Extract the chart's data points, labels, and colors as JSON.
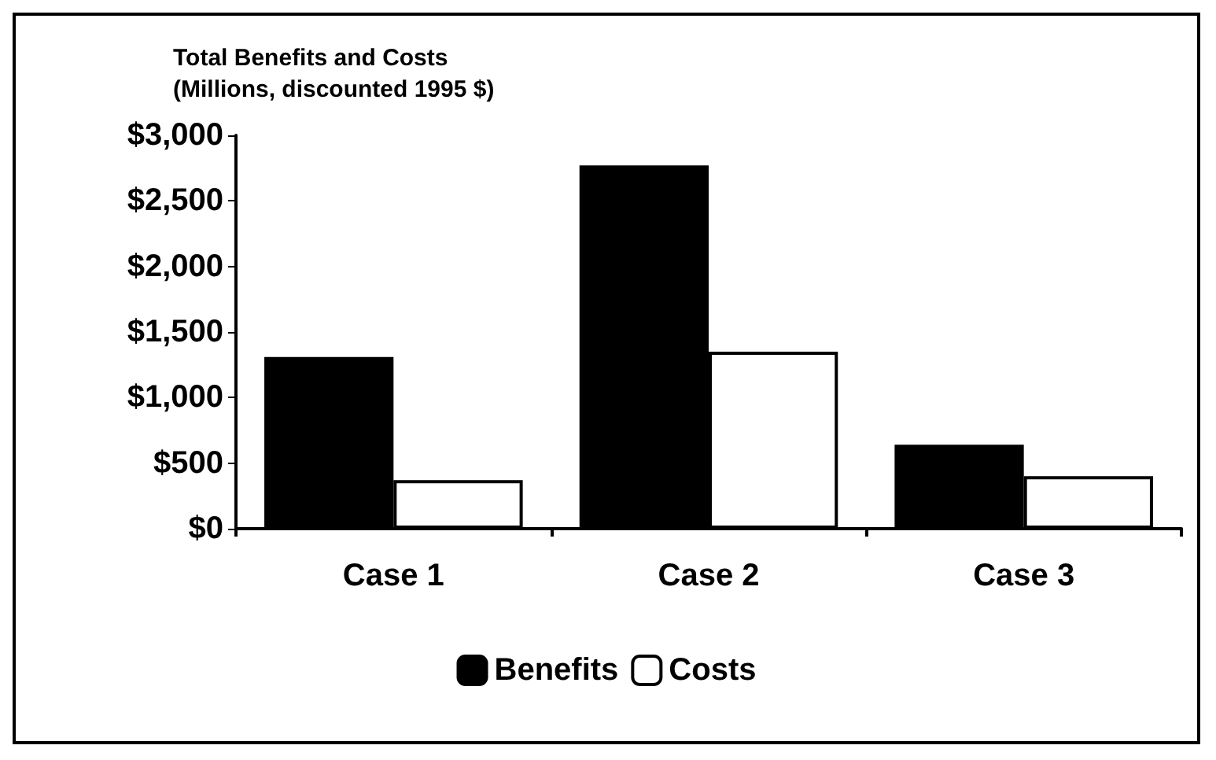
{
  "chart_data": {
    "type": "bar",
    "title": "Total Benefits and Costs\n(Millions, discounted 1995 $)",
    "categories": [
      "Case 1",
      "Case 2",
      "Case 3"
    ],
    "series": [
      {
        "name": "Benefits",
        "color": "#000000",
        "values": [
          1310,
          2770,
          640
        ]
      },
      {
        "name": "Costs",
        "color": "#ffffff",
        "values": [
          370,
          1350,
          400
        ]
      }
    ],
    "ylim": [
      0,
      3000
    ],
    "yticks": [
      {
        "value": 0,
        "label": "$0"
      },
      {
        "value": 500,
        "label": "$500"
      },
      {
        "value": 1000,
        "label": "$1,000"
      },
      {
        "value": 1500,
        "label": "$1,500"
      },
      {
        "value": 2000,
        "label": "$2,000"
      },
      {
        "value": 2500,
        "label": "$2,500"
      },
      {
        "value": 3000,
        "label": "$3,000"
      }
    ],
    "grid": false,
    "legend": "bottom"
  }
}
